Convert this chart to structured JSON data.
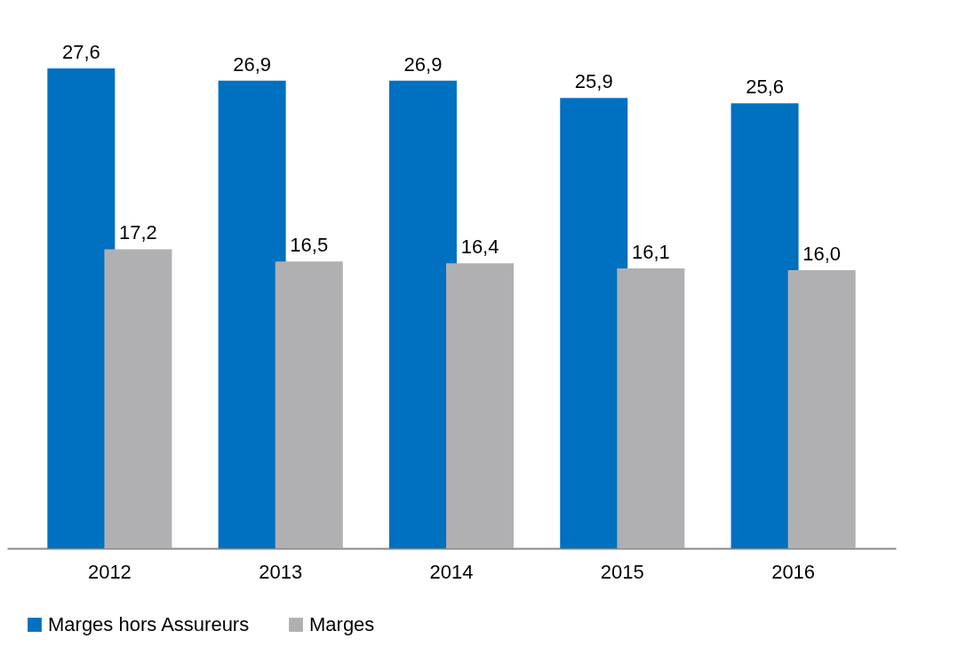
{
  "chart_data": {
    "type": "bar",
    "categories": [
      "2012",
      "2013",
      "2014",
      "2015",
      "2016"
    ],
    "series": [
      {
        "name": "Marges hors Assureurs",
        "color": "#0070c0",
        "values": [
          27.6,
          26.9,
          26.9,
          25.9,
          25.6
        ],
        "value_labels": [
          "27,6",
          "26,9",
          "26,9",
          "25,9",
          "25,6"
        ]
      },
      {
        "name": "Marges",
        "color": "#b0b0b3",
        "values": [
          17.2,
          16.5,
          16.4,
          16.1,
          16.0
        ],
        "value_labels": [
          "17,2",
          "16,5",
          "16,4",
          "16,1",
          "16,0"
        ]
      }
    ],
    "grid": false,
    "legend": "bottom"
  }
}
